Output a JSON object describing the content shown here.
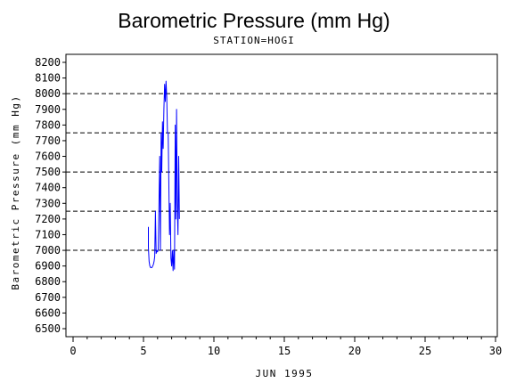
{
  "chart_data": {
    "type": "line",
    "title": "Barometric Pressure (mm Hg)",
    "subtitle": "STATION=HOGI",
    "xlabel": "JUN 1995",
    "ylabel": "Barometric Pressure (mm Hg)",
    "xlim": [
      0,
      30
    ],
    "ylim": [
      6500,
      8200
    ],
    "xticks": [
      0,
      5,
      10,
      15,
      20,
      25,
      30
    ],
    "yticks": [
      6500,
      6600,
      6700,
      6800,
      6900,
      7000,
      7100,
      7200,
      7300,
      7400,
      7500,
      7600,
      7700,
      7800,
      7900,
      8000,
      8100,
      8200
    ],
    "reference_lines": [
      7000,
      7250,
      7500,
      7750,
      8000
    ],
    "reference_line_style": "dashed",
    "series": [
      {
        "color": "#0000ff",
        "x": [
          5.35,
          5.35,
          5.4,
          5.45,
          5.5,
          5.6,
          5.7,
          5.75,
          5.8,
          5.85,
          5.9,
          5.95,
          6.0,
          6.05,
          6.1,
          6.15,
          6.2,
          6.25,
          6.3,
          6.35,
          6.4,
          6.45,
          6.5,
          6.55,
          6.6,
          6.65,
          6.7,
          6.75,
          6.8,
          6.85,
          6.9,
          6.95,
          7.0,
          7.05,
          7.1,
          7.15,
          7.2,
          7.25,
          7.3,
          7.35,
          7.4,
          7.45,
          7.5,
          7.55
        ],
        "y": [
          7150,
          7020,
          6930,
          6900,
          6890,
          6890,
          6910,
          6930,
          6960,
          7250,
          6980,
          7000,
          6990,
          7010,
          7300,
          7600,
          7000,
          7750,
          7500,
          7820,
          7650,
          7900,
          8060,
          7950,
          8080,
          7980,
          7750,
          7750,
          7450,
          7100,
          7300,
          6950,
          6900,
          7000,
          6870,
          7000,
          6880,
          7800,
          7200,
          7900,
          7300,
          7100,
          7600,
          7200
        ]
      }
    ]
  }
}
